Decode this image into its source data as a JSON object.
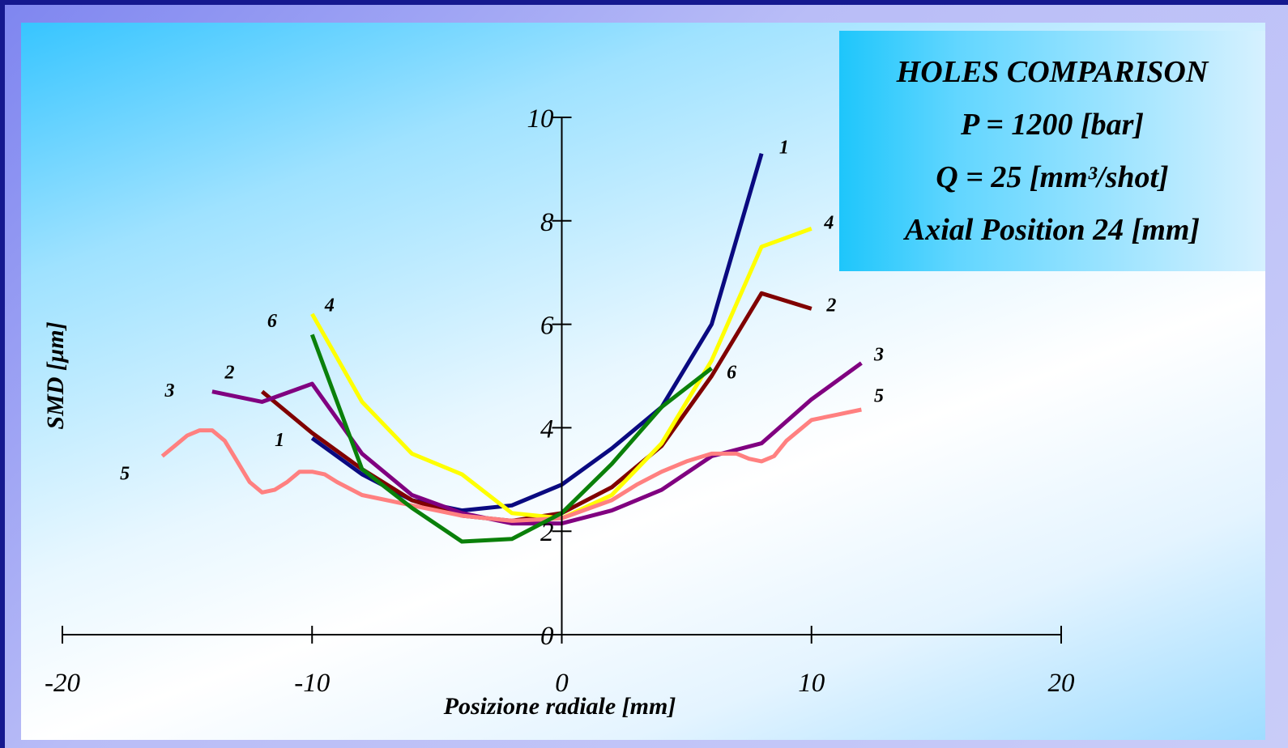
{
  "info_box": {
    "lines": [
      "HOLES COMPARISON",
      "P = 1200 [bar]",
      "Q = 25 [mm³/shot]",
      "Axial Position 24 [mm]"
    ]
  },
  "chart_data": {
    "type": "line",
    "xlabel": "Posizione radiale [mm]",
    "ylabel": "SMD [µm]",
    "xlim": [
      -20,
      20
    ],
    "ylim": [
      0,
      10
    ],
    "xticks": [
      -20,
      -10,
      0,
      10,
      20
    ],
    "yticks": [
      0,
      2,
      4,
      6,
      8,
      10
    ],
    "grid": false,
    "series": [
      {
        "name": "1",
        "color": "#0a0a80",
        "x": [
          -10,
          -8,
          -6,
          -4,
          -2,
          0,
          2,
          4,
          6,
          8
        ],
        "y": [
          3.8,
          3.1,
          2.6,
          2.4,
          2.5,
          2.9,
          3.6,
          4.4,
          6.0,
          9.3
        ]
      },
      {
        "name": "2",
        "color": "#800000",
        "x": [
          -12,
          -10,
          -8,
          -6,
          -4,
          -2,
          0,
          2,
          4,
          6,
          8,
          10
        ],
        "y": [
          4.7,
          3.9,
          3.2,
          2.6,
          2.3,
          2.2,
          2.35,
          2.85,
          3.65,
          5.0,
          6.6,
          6.3
        ]
      },
      {
        "name": "3",
        "color": "#800080",
        "x": [
          -14,
          -12,
          -10,
          -8,
          -6,
          -4,
          -2,
          0,
          2,
          4,
          6,
          8,
          10,
          12
        ],
        "y": [
          4.7,
          4.5,
          4.85,
          3.5,
          2.7,
          2.35,
          2.15,
          2.15,
          2.4,
          2.8,
          3.45,
          3.7,
          4.55,
          5.25
        ]
      },
      {
        "name": "4",
        "color": "#ffff00",
        "x": [
          -10,
          -8,
          -6,
          -4,
          -2,
          0,
          2,
          4,
          6,
          8,
          10
        ],
        "y": [
          6.2,
          4.5,
          3.5,
          3.1,
          2.35,
          2.25,
          2.7,
          3.7,
          5.3,
          7.5,
          7.85
        ]
      },
      {
        "name": "5",
        "color": "#ff8080",
        "x": [
          -16,
          -15.5,
          -15,
          -14.5,
          -14,
          -13.5,
          -13,
          -12.5,
          -12,
          -11.5,
          -11,
          -10.5,
          -10,
          -9.5,
          -9,
          -8,
          -6,
          -4,
          -2,
          0,
          2,
          3,
          4,
          5,
          6,
          7,
          7.5,
          8,
          8.5,
          9,
          10,
          11,
          12
        ],
        "y": [
          3.45,
          3.65,
          3.85,
          3.95,
          3.95,
          3.75,
          3.35,
          2.95,
          2.75,
          2.8,
          2.95,
          3.15,
          3.15,
          3.1,
          2.95,
          2.7,
          2.5,
          2.3,
          2.2,
          2.25,
          2.6,
          2.9,
          3.15,
          3.35,
          3.5,
          3.5,
          3.4,
          3.35,
          3.45,
          3.75,
          4.15,
          4.25,
          4.35
        ]
      },
      {
        "name": "6",
        "color": "#0a800a",
        "x": [
          -10,
          -8,
          -6,
          -4,
          -2,
          0,
          2,
          4,
          6
        ],
        "y": [
          5.8,
          3.2,
          2.45,
          1.8,
          1.85,
          2.35,
          3.3,
          4.4,
          5.15
        ]
      }
    ],
    "annotations": [
      {
        "text": "1",
        "x": 8.9,
        "y": 9.3
      },
      {
        "text": "1",
        "x": -11.3,
        "y": 3.65
      },
      {
        "text": "2",
        "x": 10.8,
        "y": 6.25
      },
      {
        "text": "2",
        "x": -13.3,
        "y": 4.95
      },
      {
        "text": "3",
        "x": 12.7,
        "y": 5.3
      },
      {
        "text": "3",
        "x": -15.7,
        "y": 4.6
      },
      {
        "text": "4",
        "x": 10.7,
        "y": 7.85
      },
      {
        "text": "4",
        "x": -9.3,
        "y": 6.25
      },
      {
        "text": "5",
        "x": 12.7,
        "y": 4.5
      },
      {
        "text": "5",
        "x": -17.5,
        "y": 3.0
      },
      {
        "text": "6",
        "x": 6.8,
        "y": 4.95
      },
      {
        "text": "6",
        "x": -11.6,
        "y": 5.95
      }
    ]
  }
}
